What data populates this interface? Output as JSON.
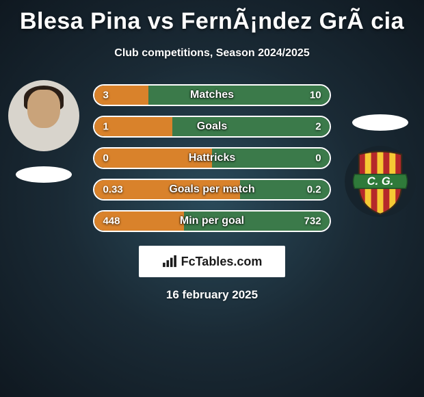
{
  "title": "Blesa Pina vs FernÃ¡ndez GrÃ cia",
  "subtitle": "Club competitions, Season 2024/2025",
  "date": "16 february 2025",
  "logo_text": "FcTables.com",
  "colors": {
    "left_fill": "#d9822b",
    "right_fill": "#3b7a4a",
    "bar_border": "#ffffff",
    "text": "#ffffff"
  },
  "bars": [
    {
      "label": "Matches",
      "left_val": "3",
      "right_val": "10",
      "left_pct": 23,
      "right_pct": 77
    },
    {
      "label": "Goals",
      "left_val": "1",
      "right_val": "2",
      "left_pct": 33,
      "right_pct": 67
    },
    {
      "label": "Hattricks",
      "left_val": "0",
      "right_val": "0",
      "left_pct": 50,
      "right_pct": 50
    },
    {
      "label": "Goals per match",
      "left_val": "0.33",
      "right_val": "0.2",
      "left_pct": 62,
      "right_pct": 38
    },
    {
      "label": "Min per goal",
      "left_val": "448",
      "right_val": "732",
      "left_pct": 38,
      "right_pct": 62
    }
  ],
  "crest": {
    "stripes": [
      "#b5282a",
      "#f6c934",
      "#b5282a",
      "#f6c934",
      "#b5282a",
      "#f6c934",
      "#b5282a"
    ],
    "scroll_bg": "#2f7a3a",
    "scroll_text": "C. G."
  }
}
